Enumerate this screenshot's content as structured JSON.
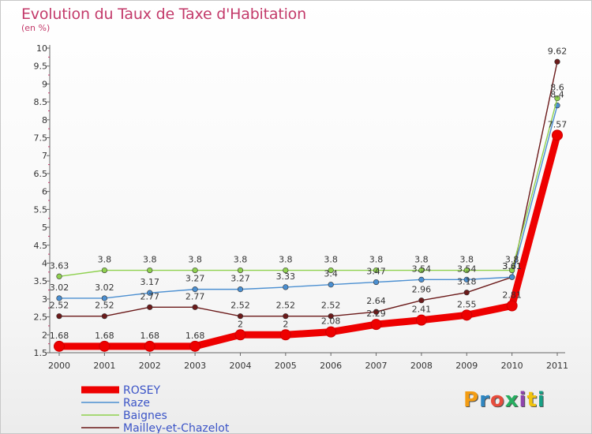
{
  "chart_data": {
    "type": "line",
    "title": "Evolution du Taux de Taxe d'Habitation",
    "ylabel": "(en %)",
    "xlabel": "",
    "ylim": [
      1.5,
      10
    ],
    "yticks": [
      "1.5",
      "2",
      "2.5",
      "3",
      "3.5",
      "4",
      "4.5",
      "5",
      "5.5",
      "6",
      "6.5",
      "7",
      "7.5",
      "8",
      "8.5",
      "9",
      "9.5",
      "10"
    ],
    "categories": [
      "2000",
      "2001",
      "2002",
      "2003",
      "2004",
      "2005",
      "2006",
      "2007",
      "2008",
      "2009",
      "2010",
      "2011"
    ],
    "series": [
      {
        "name": "ROSEY",
        "color": "#ee0000",
        "values": [
          1.68,
          1.68,
          1.68,
          1.68,
          2,
          2,
          2.08,
          2.29,
          2.41,
          2.55,
          2.81,
          7.57
        ]
      },
      {
        "name": "Raze",
        "color": "#4b8fd1",
        "values": [
          3.02,
          3.02,
          3.17,
          3.27,
          3.27,
          3.33,
          3.4,
          3.47,
          3.54,
          3.54,
          3.61,
          8.4
        ]
      },
      {
        "name": "Baignes",
        "color": "#8fd14f",
        "values": [
          3.63,
          3.8,
          3.8,
          3.8,
          3.8,
          3.8,
          3.8,
          3.8,
          3.8,
          3.8,
          3.8,
          8.6
        ]
      },
      {
        "name": "Mailley-et-Chazelot",
        "color": "#6b1a1a",
        "values": [
          2.52,
          2.52,
          2.77,
          2.77,
          2.52,
          2.52,
          2.52,
          2.64,
          2.96,
          3.18,
          3.61,
          9.62
        ]
      }
    ],
    "data_labels": {
      "ROSEY": [
        "1.68",
        "1.68",
        "1.68",
        "1.68",
        "2",
        "2",
        "2.08",
        "2.29",
        "2.41",
        "2.55",
        "2.81",
        "7.57"
      ],
      "Raze": [
        "3.02",
        "3.02",
        "3.17",
        "3.27",
        "3.27",
        "3.33",
        "3.4",
        "3.47",
        "3.54",
        "3.54",
        "3.61",
        "8.4"
      ],
      "Baignes": [
        "3.63",
        "3.8",
        "3.8",
        "3.8",
        "3.8",
        "3.8",
        "3.8",
        "3.8",
        "3.8",
        "3.8",
        "3.8",
        "8.6"
      ],
      "Mailley-et-Chazelot": [
        "2.52",
        "2.52",
        "2.77",
        "2.77",
        "2.52",
        "2.52",
        "2.52",
        "2.64",
        "2.96",
        "3.18",
        "3.61",
        "9.62"
      ]
    },
    "legend_position": "bottom-left",
    "grid": false
  },
  "logo": {
    "text": "Proxiti",
    "letters": [
      "P",
      "r",
      "o",
      "x",
      "i",
      "t",
      "i"
    ],
    "colors": [
      "#f39c12",
      "#2e86c1",
      "#e74c3c",
      "#27ae60",
      "#8e44ad",
      "#f1c40f",
      "#16a085"
    ]
  }
}
